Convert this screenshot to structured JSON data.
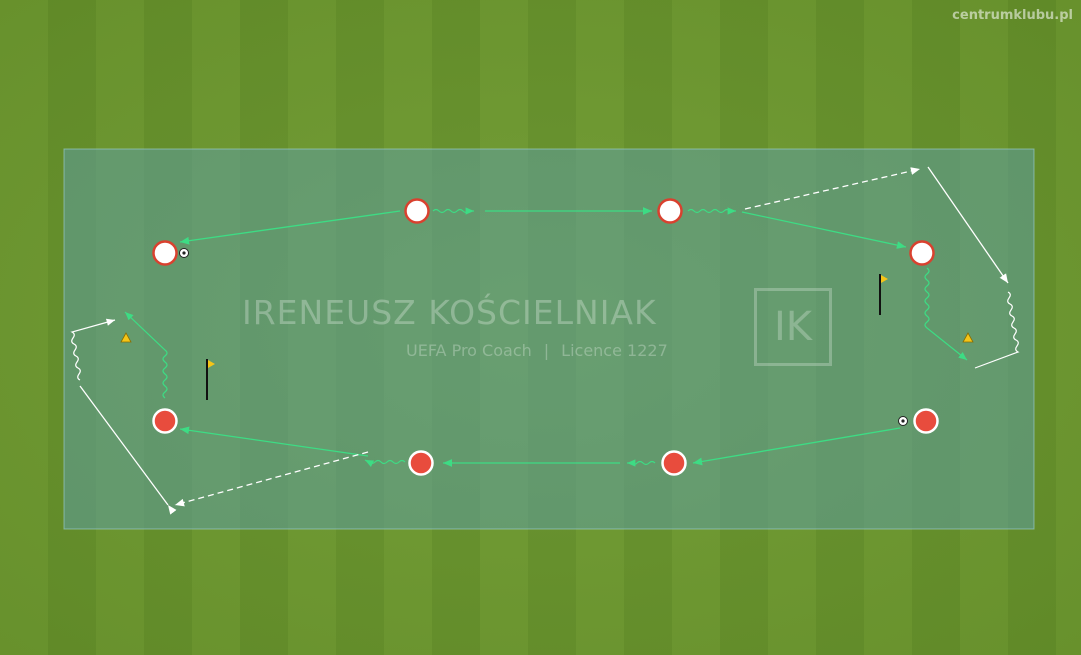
{
  "site_watermark": "centrumklubu.pl",
  "coach": {
    "name": "IRENEUSZ KOŚCIELNIAK",
    "role": "UEFA Pro Coach",
    "separator": "|",
    "licence": "Licence 1227",
    "logo_text": "IK"
  },
  "colors": {
    "grass_light": "#6e9a2f",
    "grass_dark": "#66922a",
    "zone_fill": "#5f9ea0",
    "pass_arrow": "#3ddc84",
    "run_arrow": "#ffffff",
    "team_white": "#ffffff",
    "team_red": "#e84c3d",
    "player_border": "#d9412f",
    "cone": "#f5c518",
    "flag": "#f5c518"
  },
  "legend_elements": {
    "players_white": 4,
    "players_red": 4,
    "balls": 2,
    "cones": 2,
    "flags": 2
  }
}
